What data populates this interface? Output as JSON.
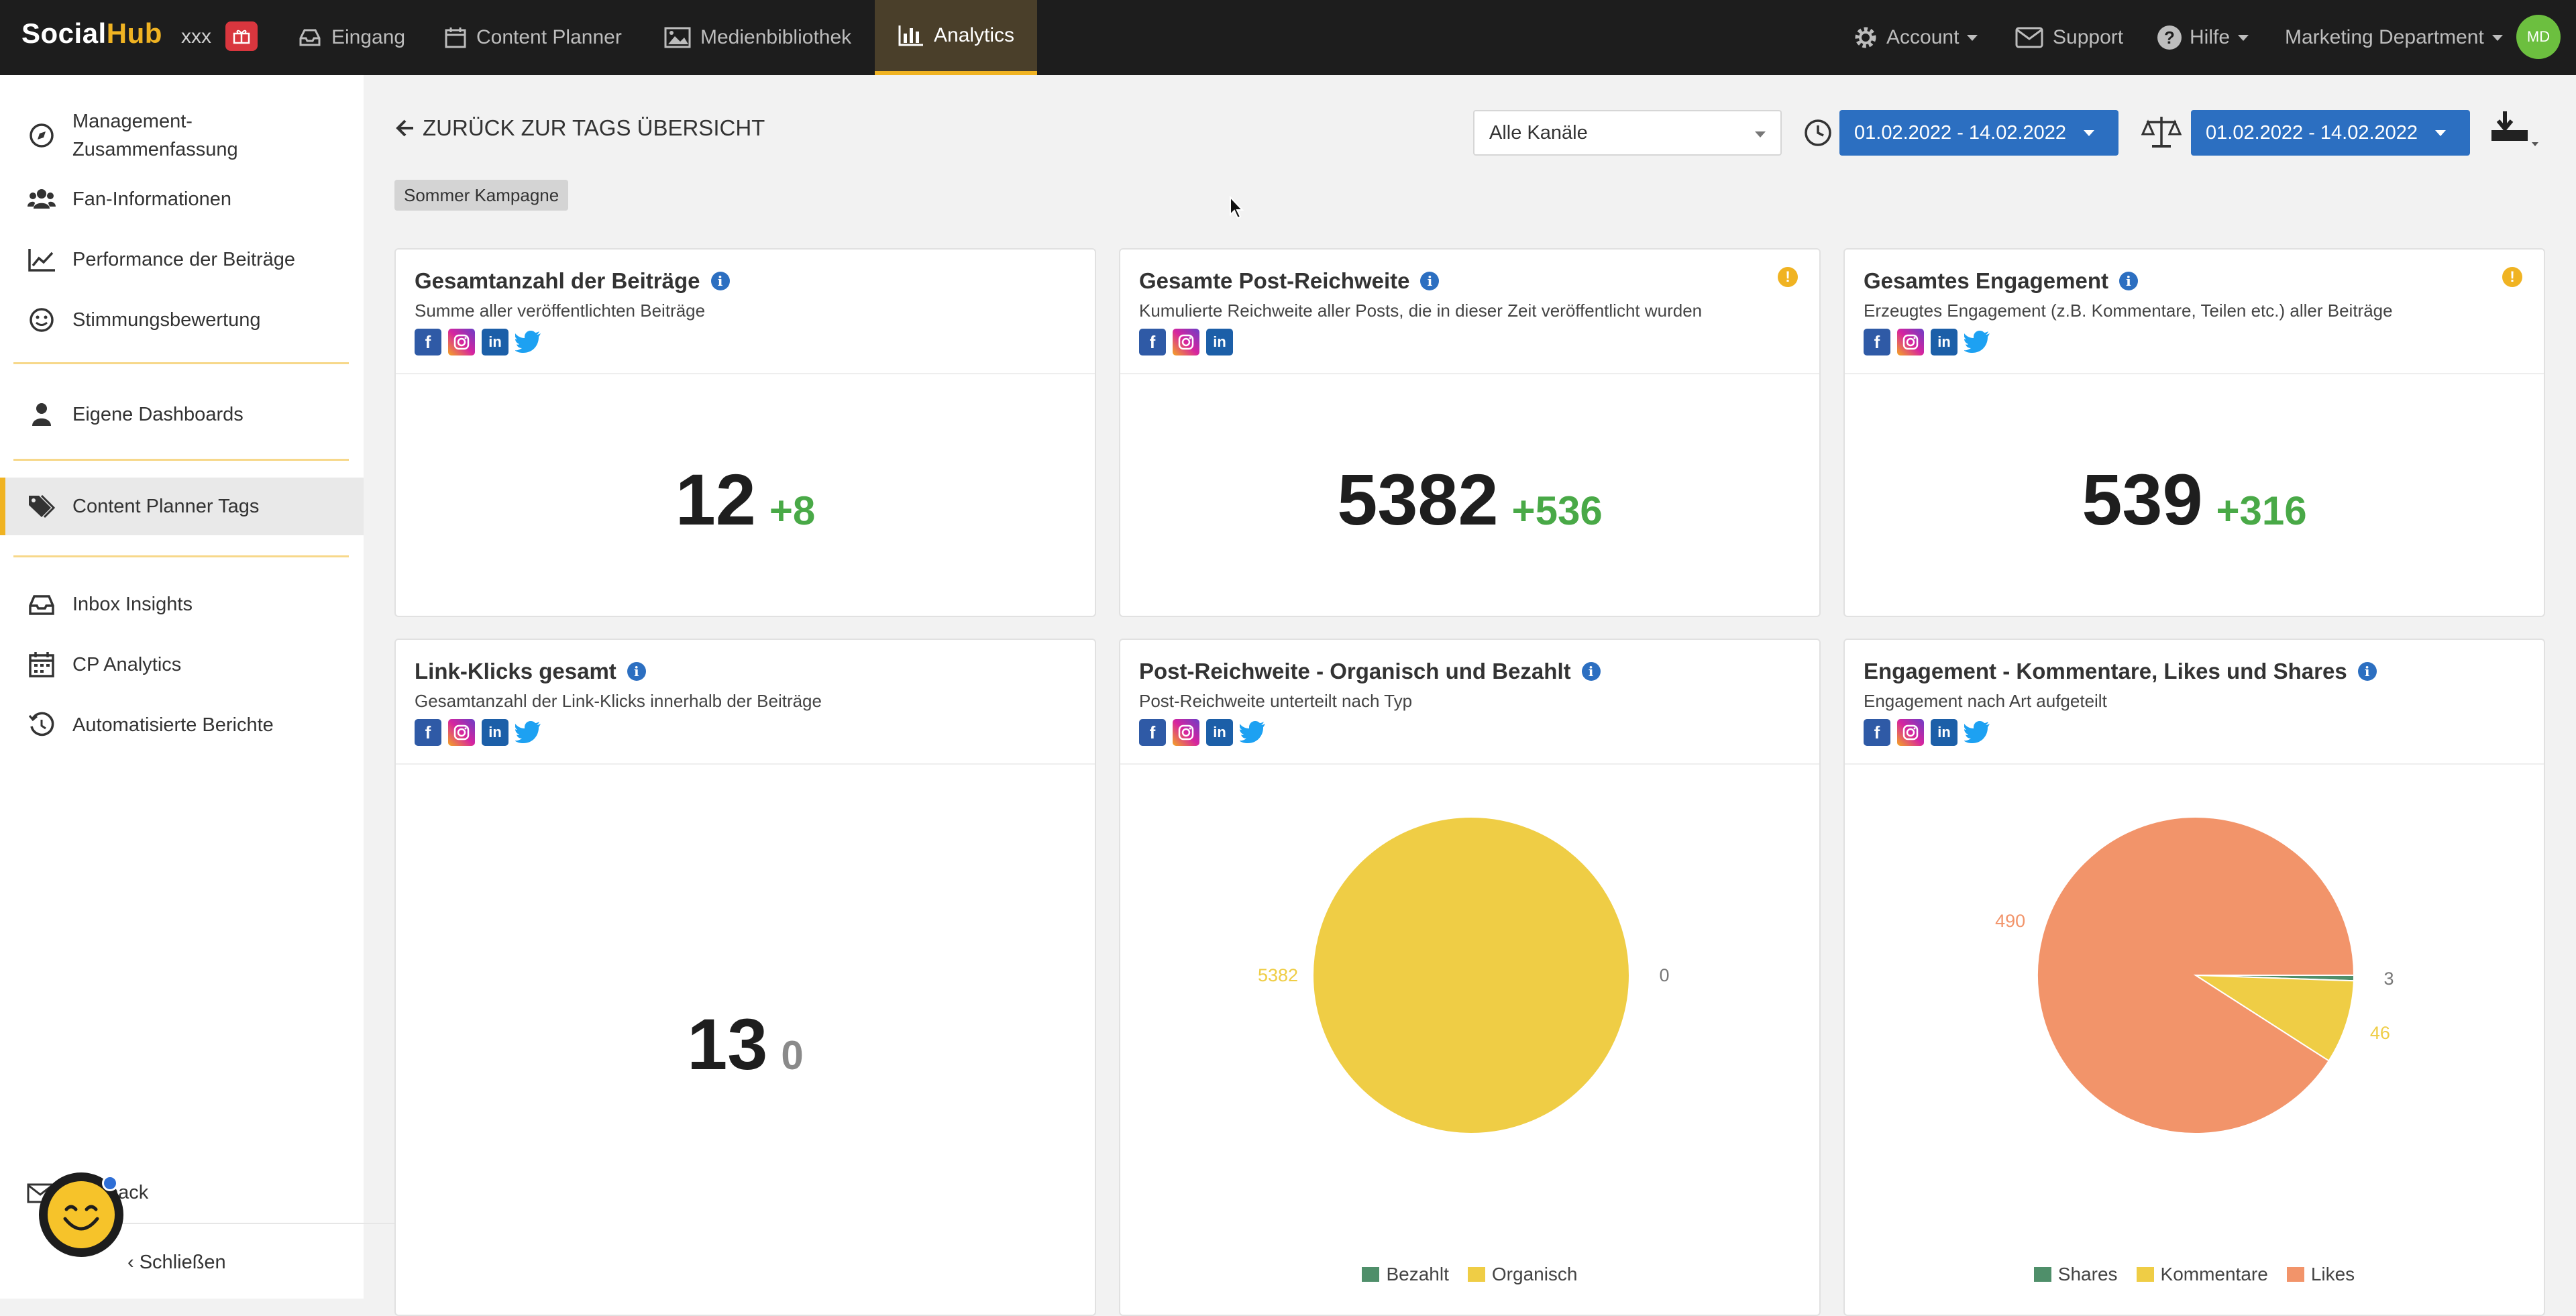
{
  "topbar": {
    "logo_social": "Social",
    "logo_hub": "Hub",
    "org": "xxx",
    "nav": [
      {
        "label": "Eingang"
      },
      {
        "label": "Content Planner"
      },
      {
        "label": "Medienbibliothek"
      },
      {
        "label": "Analytics"
      }
    ],
    "account": "Account",
    "support": "Support",
    "help": "Hilfe",
    "department": "Marketing Department",
    "avatar": "MD"
  },
  "sidebar": {
    "items": [
      {
        "label": "Management-Zusammenfassung"
      },
      {
        "label": "Fan-Informationen"
      },
      {
        "label": "Performance der Beiträge"
      },
      {
        "label": "Stimmungsbewertung"
      },
      {
        "label": "Eigene Dashboards"
      },
      {
        "label": "Content Planner Tags"
      },
      {
        "label": "Inbox Insights"
      },
      {
        "label": "CP Analytics"
      },
      {
        "label": "Automatisierte Berichte"
      }
    ],
    "feedback": "back",
    "close": "Schließen"
  },
  "header": {
    "back": "ZURÜCK ZUR TAGS ÜBERSICHT",
    "tag": "Sommer Kampagne",
    "channel": "Alle Kanäle",
    "date_range": "01.02.2022 - 14.02.2022",
    "compare_range": "01.02.2022 - 14.02.2022"
  },
  "cards": [
    {
      "title": "Gesamtanzahl der Beiträge",
      "subtitle": "Summe aller veröffentlichten Beiträge",
      "value": "12",
      "delta": "+8"
    },
    {
      "title": "Gesamte Post-Reichweite",
      "subtitle": "Kumulierte Reichweite aller Posts, die in dieser Zeit veröffentlicht wurden",
      "value": "5382",
      "delta": "+536"
    },
    {
      "title": "Gesamtes Engagement",
      "subtitle": "Erzeugtes Engagement (z.B. Kommentare, Teilen etc.) aller Beiträge",
      "value": "539",
      "delta": "+316"
    },
    {
      "title": "Link-Klicks gesamt",
      "subtitle": "Gesamtanzahl der Link-Klicks innerhalb der Beiträge",
      "value": "13",
      "delta": "0"
    },
    {
      "title": "Post-Reichweite - Organisch und Bezahlt",
      "subtitle": "Post-Reichweite unterteilt nach Typ"
    },
    {
      "title": "Engagement - Kommentare, Likes und Shares",
      "subtitle": "Engagement nach Art aufgeteilt"
    }
  ],
  "colors": {
    "accent": "#f0b322",
    "primary": "#2c6fc1",
    "positive": "#49a947"
  },
  "chart_data": [
    {
      "type": "pie",
      "categories": [
        "Bezahlt",
        "Organisch"
      ],
      "values": [
        0,
        5382
      ],
      "colors": [
        "#4f8f6a",
        "#efcd45"
      ],
      "labels": [
        "0",
        "5382"
      ],
      "legend": "bottom"
    },
    {
      "type": "pie",
      "categories": [
        "Shares",
        "Kommentare",
        "Likes"
      ],
      "values": [
        3,
        46,
        490
      ],
      "colors": [
        "#4f8f6a",
        "#efcd45",
        "#f2946a"
      ],
      "labels": [
        "3",
        "46",
        "490"
      ],
      "legend": "bottom"
    }
  ]
}
